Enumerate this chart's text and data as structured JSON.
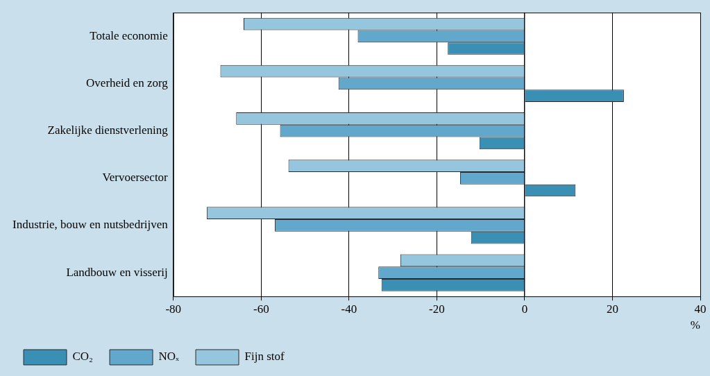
{
  "chart_data": {
    "type": "bar",
    "orientation": "horizontal",
    "xlabel": "%",
    "categories": [
      "Totale economie",
      "Overheid en zorg",
      "Zakelijke dienstverlening",
      "Vervoersector",
      "Industrie, bouw en nutsbedrijven",
      "Landbouw en visserij"
    ],
    "series": [
      {
        "name": "CO₂",
        "color": "#3a8fb5",
        "values": [
          -17.5,
          22.6,
          -10.3,
          11.6,
          -12.2,
          -32.6
        ]
      },
      {
        "name": "NOₓ",
        "color": "#62a8cc",
        "values": [
          -38,
          -42.4,
          -55.7,
          -14.7,
          -56.9,
          -33.3
        ]
      },
      {
        "name": "Fijn stof",
        "color": "#96c6de",
        "values": [
          -64,
          -69.3,
          -65.7,
          -53.8,
          -72.4,
          -28.3
        ]
      }
    ],
    "xlim": [
      -80,
      40
    ],
    "xticks": [
      -80,
      -60,
      -40,
      -20,
      0,
      20,
      40
    ],
    "grid": "x",
    "legend": "bottom"
  }
}
